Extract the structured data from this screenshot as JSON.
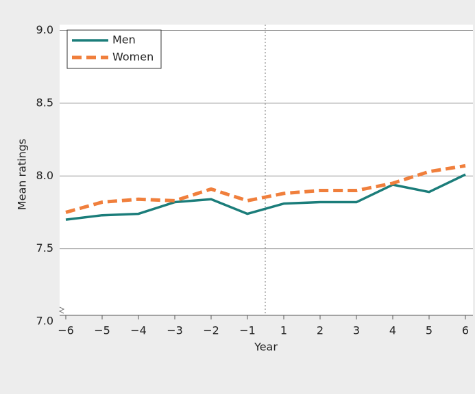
{
  "chart_data": {
    "type": "line",
    "xlabel": "Year",
    "ylabel": "Mean ratings",
    "categories": [
      "−6",
      "−5",
      "−4",
      "−3",
      "−2",
      "−1",
      "1",
      "2",
      "3",
      "4",
      "5",
      "6"
    ],
    "series": [
      {
        "name": "Men",
        "color": "#1b7d7a",
        "dash": false,
        "values": [
          7.7,
          7.73,
          7.74,
          7.82,
          7.84,
          7.74,
          7.81,
          7.82,
          7.82,
          7.94,
          7.89,
          8.01
        ]
      },
      {
        "name": "Women",
        "color": "#f07f3c",
        "dash": true,
        "values": [
          7.75,
          7.82,
          7.84,
          7.83,
          7.91,
          7.83,
          7.88,
          7.9,
          7.9,
          7.95,
          8.03,
          8.07
        ]
      }
    ],
    "ylim": [
      7,
      9.04
    ],
    "yticks": [
      {
        "value": 7,
        "label": "7.0"
      },
      {
        "value": 7.5,
        "label": "7.5"
      },
      {
        "value": 8,
        "label": "8.0"
      },
      {
        "value": 8.5,
        "label": "8.5"
      },
      {
        "value": 9,
        "label": "9.0"
      }
    ],
    "grid": true,
    "legend": "upper left"
  }
}
